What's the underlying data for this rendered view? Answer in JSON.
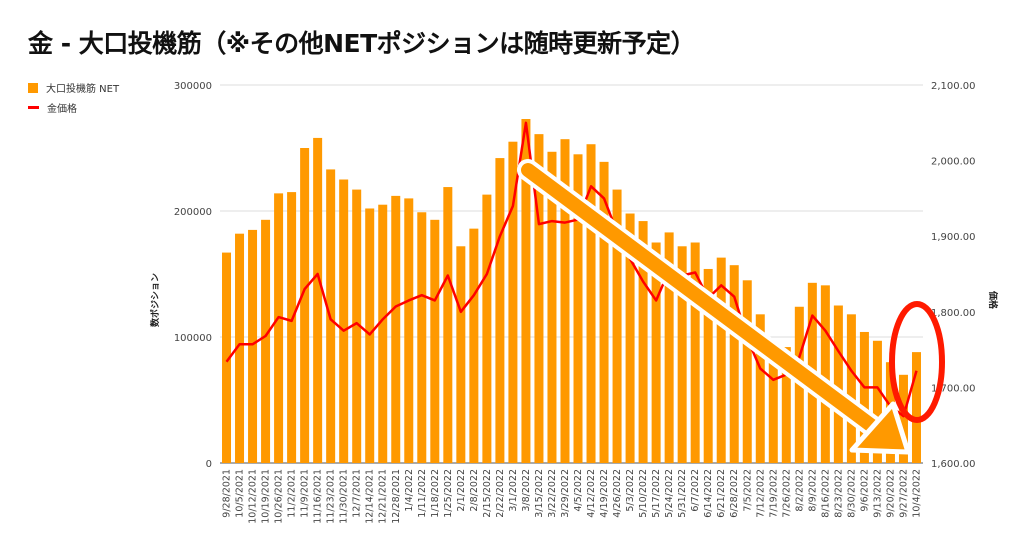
{
  "title": "金 - 大口投機筋（※その他NETポジションは随時更新予定）",
  "legend": [
    {
      "label": "大口投機筋  NET",
      "color": "#ff9900",
      "kind": "bar"
    },
    {
      "label": "金価格",
      "color": "#ff0000",
      "kind": "line"
    }
  ],
  "chart_data": {
    "type": "bar+line",
    "title": "金 - 大口投機筋（※その他NETポジションは随時更新予定）",
    "xlabel": "",
    "ylabel": "数ポジション",
    "y2label": "価格",
    "ylim": [
      0,
      300000
    ],
    "y2lim": [
      1600,
      2100
    ],
    "yticks": [
      "0",
      "100000",
      "200000",
      "300000"
    ],
    "y2ticks": [
      "1,600.00",
      "1,700.00",
      "1,800.00",
      "1,900.00",
      "2,000.00",
      "2,100.00"
    ],
    "grid": true,
    "legend_position": "top-left",
    "categories": [
      "9/28/2021",
      "10/5/2021",
      "10/12/2021",
      "10/19/2021",
      "10/26/2021",
      "11/2/2021",
      "11/9/2021",
      "11/16/2021",
      "11/23/2021",
      "11/30/2021",
      "12/7/2021",
      "12/14/2021",
      "12/21/2021",
      "12/28/2021",
      "1/4/2022",
      "1/11/2022",
      "1/18/2022",
      "1/25/2022",
      "2/1/2022",
      "2/8/2022",
      "2/15/2022",
      "2/22/2022",
      "3/1/2022",
      "3/8/2022",
      "3/15/2022",
      "3/22/2022",
      "3/29/2022",
      "4/5/2022",
      "4/12/2022",
      "4/19/2022",
      "4/26/2022",
      "5/3/2022",
      "5/10/2022",
      "5/17/2022",
      "5/24/2022",
      "5/31/2022",
      "6/7/2022",
      "6/14/2022",
      "6/21/2022",
      "6/28/2022",
      "7/5/2022",
      "7/12/2022",
      "7/19/2022",
      "7/26/2022",
      "8/2/2022",
      "8/9/2022",
      "8/16/2022",
      "8/23/2022",
      "8/30/2022",
      "9/6/2022",
      "9/13/2022",
      "9/20/2022",
      "9/27/2022",
      "10/4/2022"
    ],
    "series": [
      {
        "name": "大口投機筋  NET",
        "type": "bar",
        "axis": "left",
        "color": "#ff9900",
        "values": [
          167000,
          182000,
          185000,
          193000,
          214000,
          215000,
          250000,
          258000,
          233000,
          225000,
          217000,
          202000,
          205000,
          212000,
          210000,
          199000,
          193000,
          219000,
          172000,
          186000,
          213000,
          242000,
          255000,
          273000,
          261000,
          247000,
          257000,
          245000,
          253000,
          239000,
          217000,
          198000,
          192000,
          175000,
          183000,
          172000,
          175000,
          154000,
          163000,
          157000,
          145000,
          118000,
          90000,
          92000,
          124000,
          143000,
          141000,
          125000,
          118000,
          104000,
          97000,
          80000,
          70000,
          88000
        ]
      },
      {
        "name": "金価格",
        "type": "line",
        "axis": "right",
        "color": "#ff0000",
        "values": [
          1734,
          1757,
          1757,
          1768,
          1793,
          1788,
          1830,
          1850,
          1790,
          1775,
          1785,
          1770,
          1790,
          1807,
          1815,
          1822,
          1815,
          1848,
          1800,
          1822,
          1850,
          1900,
          1940,
          2050,
          1916,
          1920,
          1918,
          1922,
          1966,
          1950,
          1905,
          1870,
          1840,
          1815,
          1855,
          1848,
          1852,
          1818,
          1835,
          1820,
          1765,
          1725,
          1710,
          1717,
          1740,
          1795,
          1775,
          1748,
          1722,
          1700,
          1700,
          1675,
          1662,
          1722
        ]
      }
    ],
    "annotations": [
      "down-trend-arrow",
      "highlight-ellipse-latest"
    ]
  }
}
